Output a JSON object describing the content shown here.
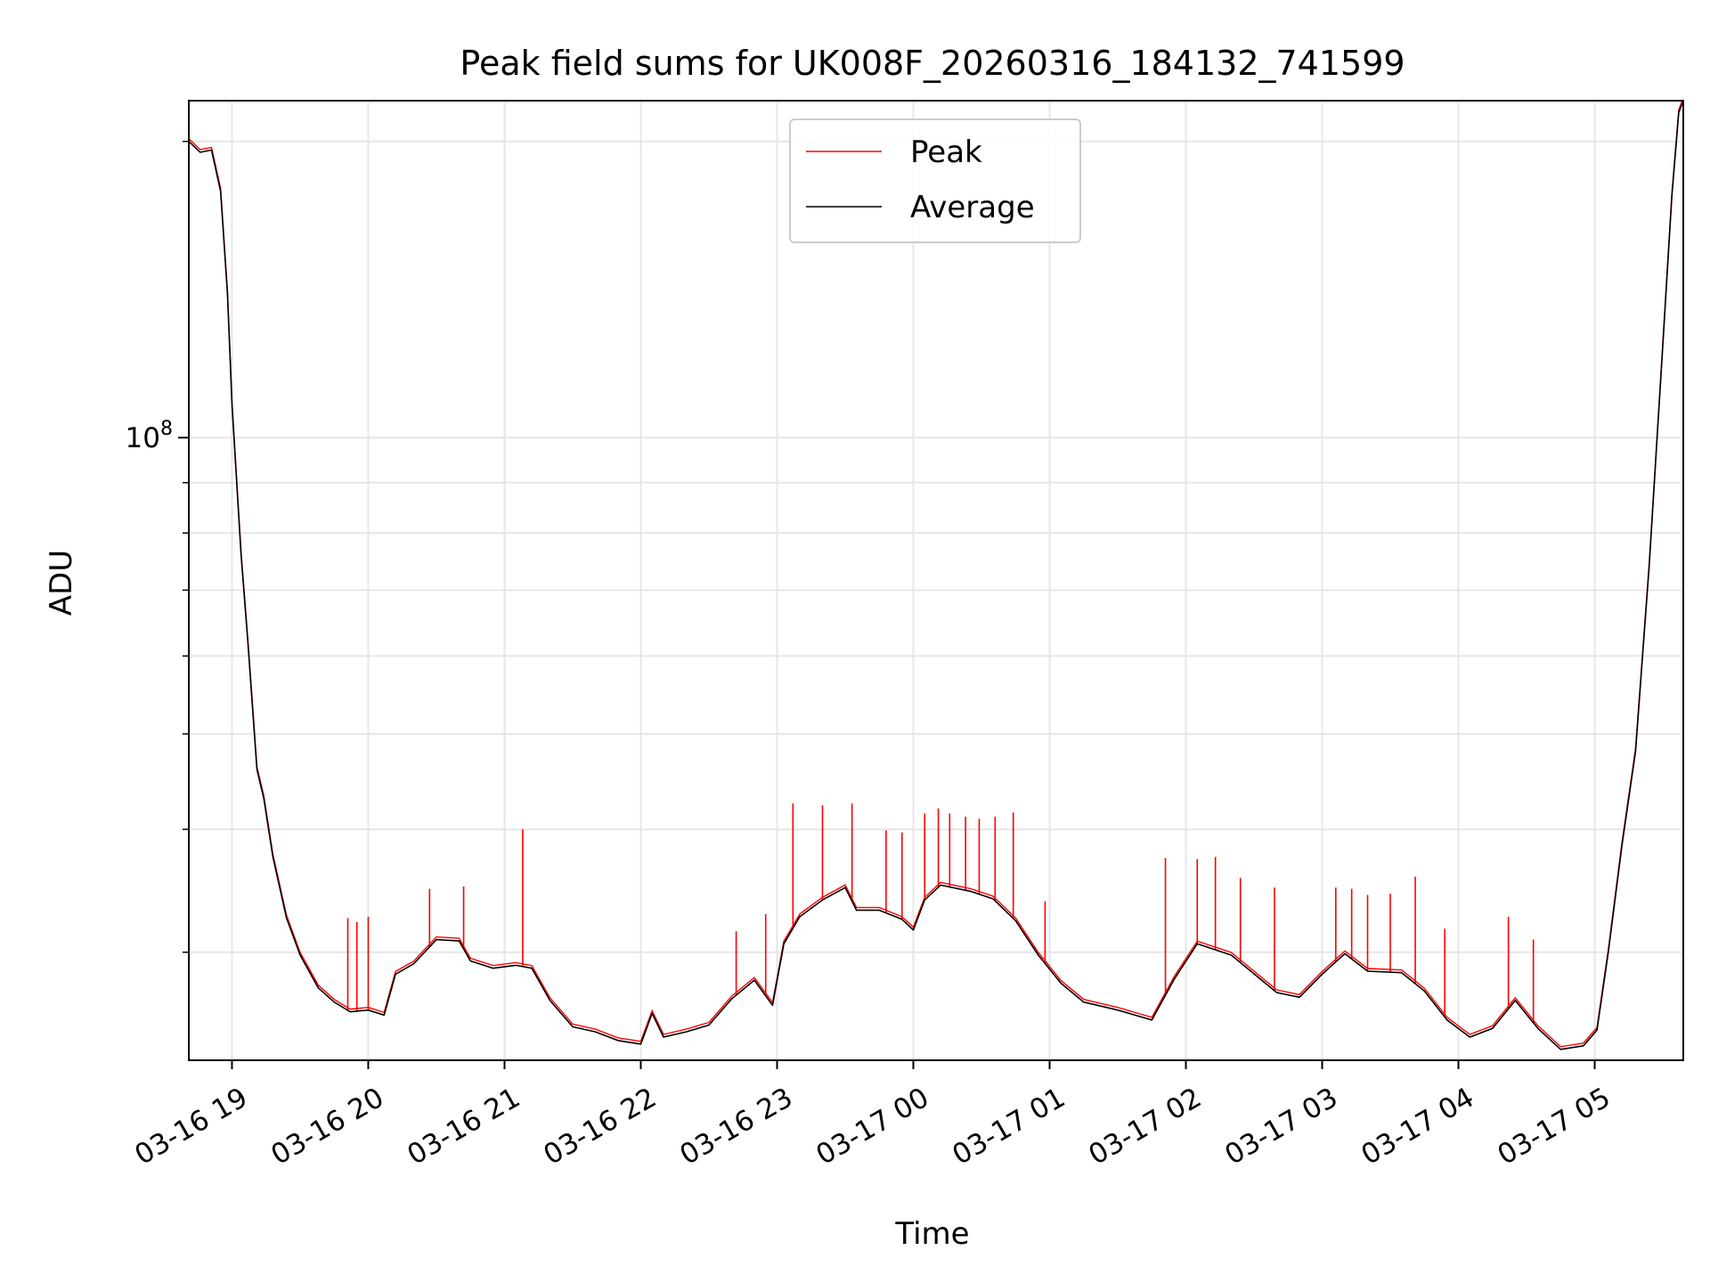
{
  "chart_data": {
    "type": "line",
    "title": "Peak field sums for UK008F_20260316_184132_741599",
    "xlabel": "Time",
    "ylabel": "ADU",
    "y_scale": "log",
    "y_tick_labels": [
      {
        "value": 100000000,
        "base": "10",
        "exp": "8"
      }
    ],
    "ylim": [
      23300000,
      220000000
    ],
    "xlim": [
      "2026-03-16 18:41",
      "2026-03-17 05:39"
    ],
    "x_tick_labels": [
      "03-16 19",
      "03-16 20",
      "03-16 21",
      "03-16 22",
      "03-16 23",
      "03-17 00",
      "03-17 01",
      "03-17 02",
      "03-17 03",
      "03-17 04",
      "03-17 05"
    ],
    "x_ticks": [
      "2026-03-16 19:00",
      "2026-03-16 20:00",
      "2026-03-16 21:00",
      "2026-03-16 22:00",
      "2026-03-16 23:00",
      "2026-03-17 00:00",
      "2026-03-17 01:00",
      "2026-03-17 02:00",
      "2026-03-17 03:00",
      "2026-03-17 04:00",
      "2026-03-17 05:00"
    ],
    "grid": true,
    "legend_position": "top-center",
    "series": [
      {
        "name": "Peak",
        "color": "#ff0000",
        "spikes": [
          [
            "2026-03-16 19:51",
            32500000
          ],
          [
            "2026-03-16 19:55",
            32200000
          ],
          [
            "2026-03-16 20:00",
            32600000
          ],
          [
            "2026-03-16 20:27",
            34800000
          ],
          [
            "2026-03-16 20:42",
            35000000
          ],
          [
            "2026-03-16 21:08",
            40000000
          ],
          [
            "2026-03-16 22:42",
            31500000
          ],
          [
            "2026-03-16 22:55",
            32800000
          ],
          [
            "2026-03-16 23:07",
            42500000
          ],
          [
            "2026-03-16 23:20",
            42300000
          ],
          [
            "2026-03-16 23:33",
            42500000
          ],
          [
            "2026-03-16 23:48",
            39900000
          ],
          [
            "2026-03-16 23:55",
            39700000
          ],
          [
            "2026-03-17 00:05",
            41500000
          ],
          [
            "2026-03-17 00:11",
            42000000
          ],
          [
            "2026-03-17 00:16",
            41500000
          ],
          [
            "2026-03-17 00:23",
            41200000
          ],
          [
            "2026-03-17 00:29",
            41000000
          ],
          [
            "2026-03-17 00:36",
            41200000
          ],
          [
            "2026-03-17 00:44",
            41600000
          ],
          [
            "2026-03-17 00:58",
            33800000
          ],
          [
            "2026-03-17 01:51",
            37400000
          ],
          [
            "2026-03-17 02:05",
            37300000
          ],
          [
            "2026-03-17 02:13",
            37500000
          ],
          [
            "2026-03-17 02:24",
            35700000
          ],
          [
            "2026-03-17 02:39",
            34900000
          ],
          [
            "2026-03-17 03:06",
            34900000
          ],
          [
            "2026-03-17 03:13",
            34800000
          ],
          [
            "2026-03-17 03:20",
            34300000
          ],
          [
            "2026-03-17 03:30",
            34400000
          ],
          [
            "2026-03-17 03:41",
            35800000
          ],
          [
            "2026-03-17 03:54",
            31700000
          ],
          [
            "2026-03-17 04:22",
            32600000
          ],
          [
            "2026-03-17 04:33",
            30900000
          ]
        ]
      },
      {
        "name": "Average",
        "color": "#000000",
        "points": [
          [
            "2026-03-16 18:41",
            200000000
          ],
          [
            "2026-03-16 18:46",
            195000000
          ],
          [
            "2026-03-16 18:51",
            196000000
          ],
          [
            "2026-03-16 18:55",
            178000000
          ],
          [
            "2026-03-16 18:58",
            140000000
          ],
          [
            "2026-03-16 19:00",
            108000000
          ],
          [
            "2026-03-16 19:04",
            76000000
          ],
          [
            "2026-03-16 19:07",
            62000000
          ],
          [
            "2026-03-16 19:11",
            46000000
          ],
          [
            "2026-03-16 19:14",
            43000000
          ],
          [
            "2026-03-16 19:18",
            37500000
          ],
          [
            "2026-03-16 19:24",
            32500000
          ],
          [
            "2026-03-16 19:30",
            29800000
          ],
          [
            "2026-03-16 19:38",
            27600000
          ],
          [
            "2026-03-16 19:45",
            26700000
          ],
          [
            "2026-03-16 19:52",
            26100000
          ],
          [
            "2026-03-16 20:00",
            26200000
          ],
          [
            "2026-03-16 20:07",
            25900000
          ],
          [
            "2026-03-16 20:12",
            28500000
          ],
          [
            "2026-03-16 20:20",
            29200000
          ],
          [
            "2026-03-16 20:30",
            30900000
          ],
          [
            "2026-03-16 20:40",
            30800000
          ],
          [
            "2026-03-16 20:45",
            29400000
          ],
          [
            "2026-03-16 20:55",
            28900000
          ],
          [
            "2026-03-16 21:05",
            29100000
          ],
          [
            "2026-03-16 21:12",
            28900000
          ],
          [
            "2026-03-16 21:20",
            26800000
          ],
          [
            "2026-03-16 21:30",
            25200000
          ],
          [
            "2026-03-16 21:40",
            24900000
          ],
          [
            "2026-03-16 21:50",
            24400000
          ],
          [
            "2026-03-16 22:00",
            24200000
          ],
          [
            "2026-03-16 22:05",
            26000000
          ],
          [
            "2026-03-16 22:10",
            24600000
          ],
          [
            "2026-03-16 22:20",
            24900000
          ],
          [
            "2026-03-16 22:30",
            25300000
          ],
          [
            "2026-03-16 22:40",
            26900000
          ],
          [
            "2026-03-16 22:50",
            28100000
          ],
          [
            "2026-03-16 22:58",
            26500000
          ],
          [
            "2026-03-16 23:03",
            30600000
          ],
          [
            "2026-03-16 23:10",
            32600000
          ],
          [
            "2026-03-16 23:20",
            33900000
          ],
          [
            "2026-03-16 23:30",
            34900000
          ],
          [
            "2026-03-16 23:35",
            33100000
          ],
          [
            "2026-03-16 23:45",
            33100000
          ],
          [
            "2026-03-16 23:55",
            32400000
          ],
          [
            "2026-03-17 00:00",
            31600000
          ],
          [
            "2026-03-17 00:05",
            33900000
          ],
          [
            "2026-03-17 00:12",
            35100000
          ],
          [
            "2026-03-17 00:25",
            34600000
          ],
          [
            "2026-03-17 00:35",
            34000000
          ],
          [
            "2026-03-17 00:45",
            32300000
          ],
          [
            "2026-03-17 00:55",
            29800000
          ],
          [
            "2026-03-17 01:05",
            27900000
          ],
          [
            "2026-03-17 01:15",
            26700000
          ],
          [
            "2026-03-17 01:30",
            26200000
          ],
          [
            "2026-03-17 01:45",
            25600000
          ],
          [
            "2026-03-17 01:55",
            28200000
          ],
          [
            "2026-03-17 02:05",
            30600000
          ],
          [
            "2026-03-17 02:20",
            29800000
          ],
          [
            "2026-03-17 02:40",
            27300000
          ],
          [
            "2026-03-17 02:50",
            27000000
          ],
          [
            "2026-03-17 03:00",
            28500000
          ],
          [
            "2026-03-17 03:10",
            29900000
          ],
          [
            "2026-03-17 03:20",
            28700000
          ],
          [
            "2026-03-17 03:35",
            28600000
          ],
          [
            "2026-03-17 03:45",
            27400000
          ],
          [
            "2026-03-17 03:55",
            25600000
          ],
          [
            "2026-03-17 04:05",
            24600000
          ],
          [
            "2026-03-17 04:15",
            25100000
          ],
          [
            "2026-03-17 04:25",
            26800000
          ],
          [
            "2026-03-17 04:35",
            25100000
          ],
          [
            "2026-03-17 04:45",
            23900000
          ],
          [
            "2026-03-17 04:55",
            24100000
          ],
          [
            "2026-03-17 05:01",
            25000000
          ],
          [
            "2026-03-17 05:06",
            30000000
          ],
          [
            "2026-03-17 05:12",
            38500000
          ],
          [
            "2026-03-17 05:18",
            48000000
          ],
          [
            "2026-03-17 05:24",
            74000000
          ],
          [
            "2026-03-17 05:30",
            124000000
          ],
          [
            "2026-03-17 05:34",
            176000000
          ],
          [
            "2026-03-17 05:37",
            214000000
          ],
          [
            "2026-03-17 05:39",
            220000000
          ]
        ]
      }
    ]
  }
}
